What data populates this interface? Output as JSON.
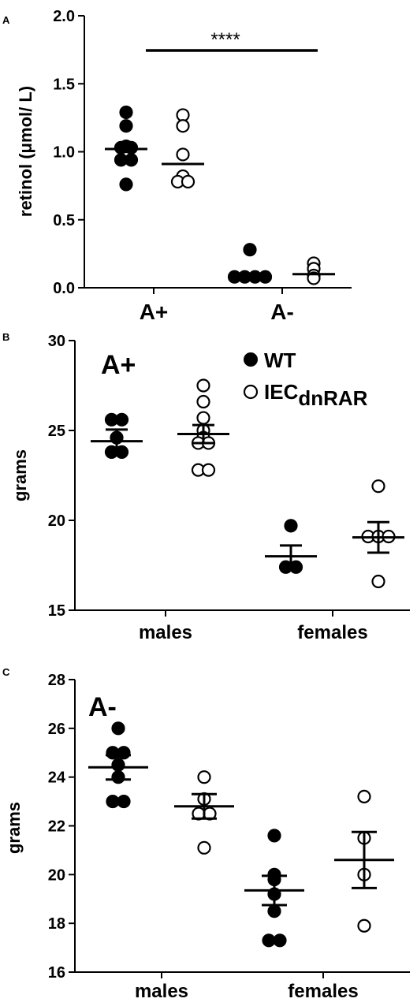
{
  "chart_data": [
    {
      "panel": "A",
      "type": "scatter",
      "ylabel": "retinol (μmol/ L)",
      "ylim": [
        0,
        2.0
      ],
      "yticks": [
        "0.0",
        "0.5",
        "1.0",
        "1.5",
        "2.0"
      ],
      "categories": [
        "A+",
        "A-"
      ],
      "annotation": "****",
      "groups": [
        {
          "category": "A+",
          "genotype": "WT",
          "fill": "filled",
          "points": [
            1.29,
            1.19,
            1.04,
            1.03,
            1.03,
            0.94,
            0.94,
            0.76
          ],
          "mean": 1.02
        },
        {
          "category": "A+",
          "genotype": "IECdnRAR",
          "fill": "open",
          "points": [
            1.27,
            1.19,
            0.98,
            0.82,
            0.78,
            0.78
          ],
          "mean": 0.91
        },
        {
          "category": "A-",
          "genotype": "WT",
          "fill": "filled",
          "points": [
            0.28,
            0.08,
            0.08,
            0.08,
            0.08
          ],
          "mean": 0.08
        },
        {
          "category": "A-",
          "genotype": "IECdnRAR",
          "fill": "open",
          "points": [
            0.18,
            0.14,
            0.09,
            0.07
          ],
          "mean": 0.1
        }
      ]
    },
    {
      "panel": "B",
      "type": "scatter",
      "ylabel": "grams",
      "ylim": [
        15,
        30
      ],
      "yticks": [
        "15",
        "20",
        "25",
        "30"
      ],
      "categories": [
        "males",
        "females"
      ],
      "corner_label": "A+",
      "legend": {
        "wt": "WT",
        "ko_main": "IEC",
        "ko_sub": "dnRAR"
      },
      "groups": [
        {
          "category": "males",
          "genotype": "WT",
          "fill": "filled",
          "points": [
            25.6,
            25.6,
            24.6,
            23.8,
            23.8
          ],
          "mean": 24.4,
          "sem": 0.65
        },
        {
          "category": "males",
          "genotype": "IECdnRAR",
          "fill": "open",
          "points": [
            27.5,
            26.6,
            25.7,
            25.0,
            24.6,
            24.3,
            24.3,
            22.8,
            22.8
          ],
          "mean": 24.8,
          "sem": 0.5
        },
        {
          "category": "females",
          "genotype": "WT",
          "fill": "filled",
          "points": [
            19.7,
            17.4,
            17.4
          ],
          "mean": 18.0,
          "sem": 0.6
        },
        {
          "category": "females",
          "genotype": "IECdnRAR",
          "fill": "open",
          "points": [
            21.9,
            19.1,
            19.1,
            19.1,
            16.6
          ],
          "mean": 19.05,
          "sem": 0.85
        }
      ]
    },
    {
      "panel": "C",
      "type": "scatter",
      "ylabel": "grams",
      "ylim": [
        16,
        28
      ],
      "yticks": [
        "16",
        "18",
        "20",
        "22",
        "24",
        "26",
        "28"
      ],
      "categories": [
        "males",
        "females"
      ],
      "corner_label": "A-",
      "groups": [
        {
          "category": "males",
          "genotype": "WT",
          "fill": "filled",
          "points": [
            26.0,
            25.0,
            25.0,
            24.5,
            24.0,
            23.0,
            23.0
          ],
          "mean": 24.4,
          "sem": 0.5
        },
        {
          "category": "males",
          "genotype": "IECdnRAR",
          "fill": "open",
          "points": [
            24.0,
            23.1,
            22.5,
            22.5,
            21.1
          ],
          "mean": 22.8,
          "sem": 0.5
        },
        {
          "category": "females",
          "genotype": "WT",
          "fill": "filled",
          "points": [
            21.6,
            20.0,
            19.8,
            19.2,
            18.5,
            17.3,
            17.3
          ],
          "mean": 19.35,
          "sem": 0.6
        },
        {
          "category": "females",
          "genotype": "IECdnRAR",
          "fill": "open",
          "points": [
            23.2,
            21.5,
            20.0,
            17.9
          ],
          "mean": 20.6,
          "sem": 1.15
        }
      ]
    }
  ]
}
